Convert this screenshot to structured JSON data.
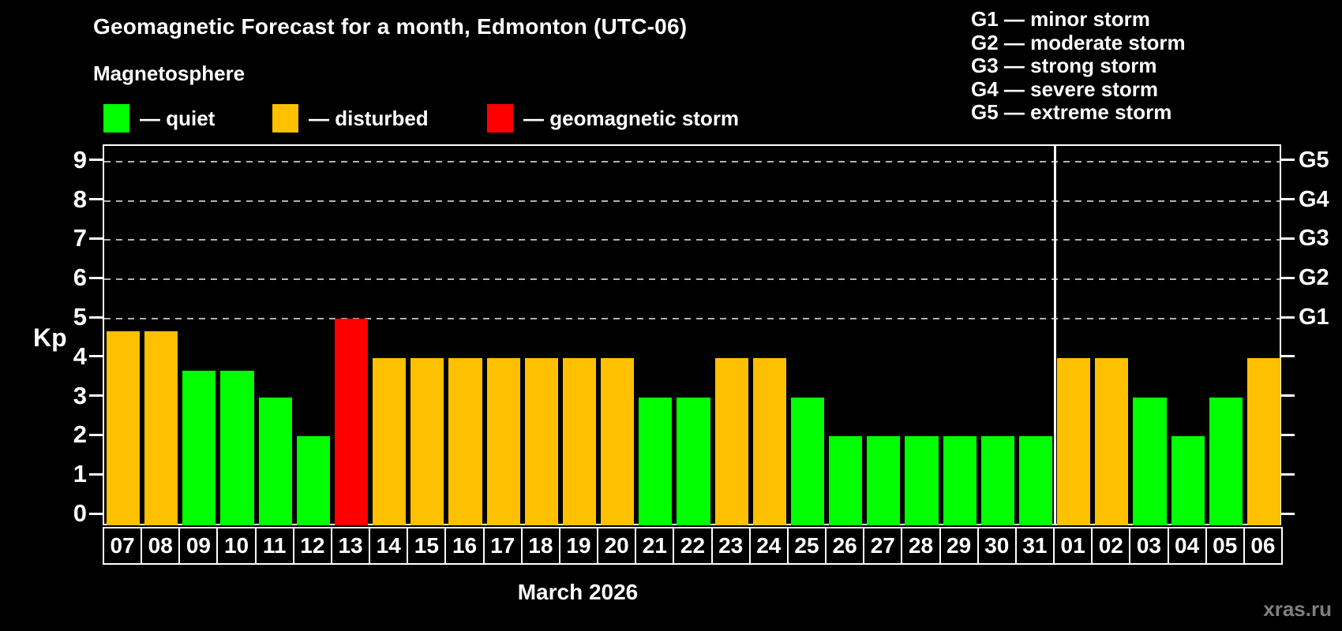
{
  "header": {
    "title": "Geomagnetic Forecast for a month, Edmonton (UTC-06)",
    "subtitle": "Magnetosphere"
  },
  "legend": {
    "items": [
      {
        "name": "quiet",
        "label": "— quiet",
        "color": "#00ff00"
      },
      {
        "name": "disturbed",
        "label": "— disturbed",
        "color": "#ffc000"
      },
      {
        "name": "storm",
        "label": "— geomagnetic storm",
        "color": "#ff0000"
      }
    ]
  },
  "storm_scale": {
    "items": [
      {
        "level": "G1",
        "label": "G1 — minor storm"
      },
      {
        "level": "G2",
        "label": "G2 — moderate storm"
      },
      {
        "level": "G3",
        "label": "G3 — strong storm"
      },
      {
        "level": "G4",
        "label": "G4 — severe storm"
      },
      {
        "level": "G5",
        "label": "G5 — extreme storm"
      }
    ]
  },
  "axis": {
    "y_label": "Kp",
    "y_ticks": [
      "0",
      "1",
      "2",
      "3",
      "4",
      "5",
      "6",
      "7",
      "8",
      "9"
    ],
    "g_ticks": [
      {
        "label": "G1",
        "kp": 5
      },
      {
        "label": "G2",
        "kp": 6
      },
      {
        "label": "G3",
        "kp": 7
      },
      {
        "label": "G4",
        "kp": 8
      },
      {
        "label": "G5",
        "kp": 9
      }
    ]
  },
  "footer": {
    "x_label": "March 2026",
    "watermark": "xras.ru"
  },
  "chart_data": {
    "type": "bar",
    "title": "Geomagnetic Forecast for a month, Edmonton (UTC-06)",
    "ylabel": "Kp",
    "xlabel": "March 2026",
    "ylim": [
      0,
      9.4
    ],
    "grid": "dashed horizontal at Kp 5-9",
    "gridlines_kp": [
      5,
      6,
      7,
      8,
      9
    ],
    "month_boundary_index": 25,
    "categories": [
      "07",
      "08",
      "09",
      "10",
      "11",
      "12",
      "13",
      "14",
      "15",
      "16",
      "17",
      "18",
      "19",
      "20",
      "21",
      "22",
      "23",
      "24",
      "25",
      "26",
      "27",
      "28",
      "29",
      "30",
      "31",
      "01",
      "02",
      "03",
      "04",
      "05",
      "06"
    ],
    "values": [
      4.67,
      4.67,
      3.67,
      3.67,
      3,
      2,
      5,
      4,
      4,
      4,
      4,
      4,
      4,
      4,
      3,
      3,
      4,
      4,
      3,
      2,
      2,
      2,
      2,
      2,
      2,
      4,
      4,
      3,
      2,
      3,
      4
    ],
    "statuses": [
      "disturbed",
      "disturbed",
      "quiet",
      "quiet",
      "quiet",
      "quiet",
      "storm",
      "disturbed",
      "disturbed",
      "disturbed",
      "disturbed",
      "disturbed",
      "disturbed",
      "disturbed",
      "quiet",
      "quiet",
      "disturbed",
      "disturbed",
      "quiet",
      "quiet",
      "quiet",
      "quiet",
      "quiet",
      "quiet",
      "quiet",
      "disturbed",
      "disturbed",
      "quiet",
      "quiet",
      "quiet",
      "disturbed"
    ],
    "palette": {
      "quiet": "#00ff00",
      "disturbed": "#ffc000",
      "storm": "#ff0000"
    }
  }
}
